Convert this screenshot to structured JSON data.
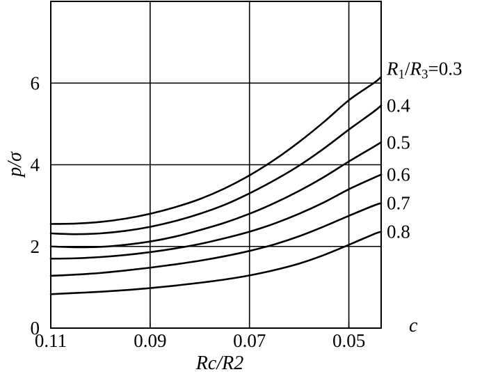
{
  "chart_data": {
    "type": "line",
    "title": "",
    "xlabel": "Rc/R2",
    "ylabel": "p/σ",
    "corner_label": "c",
    "x_reversed": true,
    "xlim": [
      0.11,
      0.0435
    ],
    "ylim": [
      0,
      8
    ],
    "x_ticks": [
      0.11,
      0.09,
      0.07,
      0.05
    ],
    "x_tick_labels": [
      "0.11",
      "0.09",
      "0.07",
      "0.05"
    ],
    "y_ticks": [
      0,
      2,
      4,
      6
    ],
    "y_tick_labels": [
      "0",
      "2",
      "4",
      "6"
    ],
    "grid": true,
    "legend": "none",
    "x": [
      0.11,
      0.105,
      0.1,
      0.095,
      0.09,
      0.085,
      0.08,
      0.075,
      0.07,
      0.065,
      0.06,
      0.055,
      0.05,
      0.045,
      0.0435
    ],
    "series": [
      {
        "name": "R1/R3=0.3",
        "values": [
          2.55,
          2.56,
          2.6,
          2.68,
          2.8,
          2.96,
          3.16,
          3.42,
          3.74,
          4.12,
          4.56,
          5.05,
          5.58,
          6.0,
          6.15
        ]
      },
      {
        "name": "0.4",
        "values": [
          2.32,
          2.3,
          2.32,
          2.38,
          2.48,
          2.62,
          2.8,
          3.02,
          3.3,
          3.62,
          3.98,
          4.4,
          4.86,
          5.3,
          5.45
        ]
      },
      {
        "name": "0.5",
        "values": [
          2.0,
          1.98,
          1.99,
          2.04,
          2.12,
          2.24,
          2.4,
          2.58,
          2.8,
          3.06,
          3.36,
          3.7,
          4.08,
          4.44,
          4.55
        ]
      },
      {
        "name": "0.6",
        "values": [
          1.7,
          1.71,
          1.74,
          1.79,
          1.86,
          1.95,
          2.06,
          2.2,
          2.36,
          2.56,
          2.8,
          3.08,
          3.4,
          3.68,
          3.76
        ]
      },
      {
        "name": "0.7",
        "values": [
          1.28,
          1.31,
          1.35,
          1.41,
          1.48,
          1.56,
          1.65,
          1.76,
          1.89,
          2.05,
          2.25,
          2.49,
          2.75,
          3.0,
          3.06
        ]
      },
      {
        "name": "0.8",
        "values": [
          0.83,
          0.86,
          0.89,
          0.93,
          0.98,
          1.04,
          1.11,
          1.19,
          1.29,
          1.42,
          1.58,
          1.79,
          2.04,
          2.3,
          2.36
        ]
      }
    ]
  }
}
